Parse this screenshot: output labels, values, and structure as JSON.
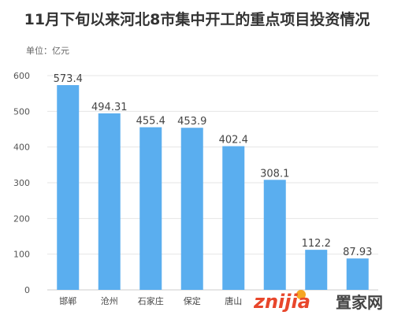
{
  "chart_data": {
    "type": "bar",
    "title": "11月下旬以来河北8市集中开工的重点项目投资情况",
    "unit_label": "单位：亿元",
    "categories": [
      "邯郸",
      "沧州",
      "石家庄",
      "保定",
      "唐山",
      "",
      "",
      ""
    ],
    "values": [
      573.4,
      494.31,
      455.4,
      453.9,
      402.4,
      308.1,
      112.2,
      87.93
    ],
    "value_labels": [
      "573.4",
      "494.31",
      "455.4",
      "453.9",
      "402.4",
      "308.1",
      "112.2",
      "87.93"
    ],
    "ylim": [
      0,
      600
    ],
    "yticks": [
      0,
      100,
      200,
      300,
      400,
      500,
      600
    ],
    "grid": true,
    "bar_color": "#5aaeef"
  },
  "watermark": {
    "logo_text": "znijia",
    "cn_text": "置家网"
  }
}
